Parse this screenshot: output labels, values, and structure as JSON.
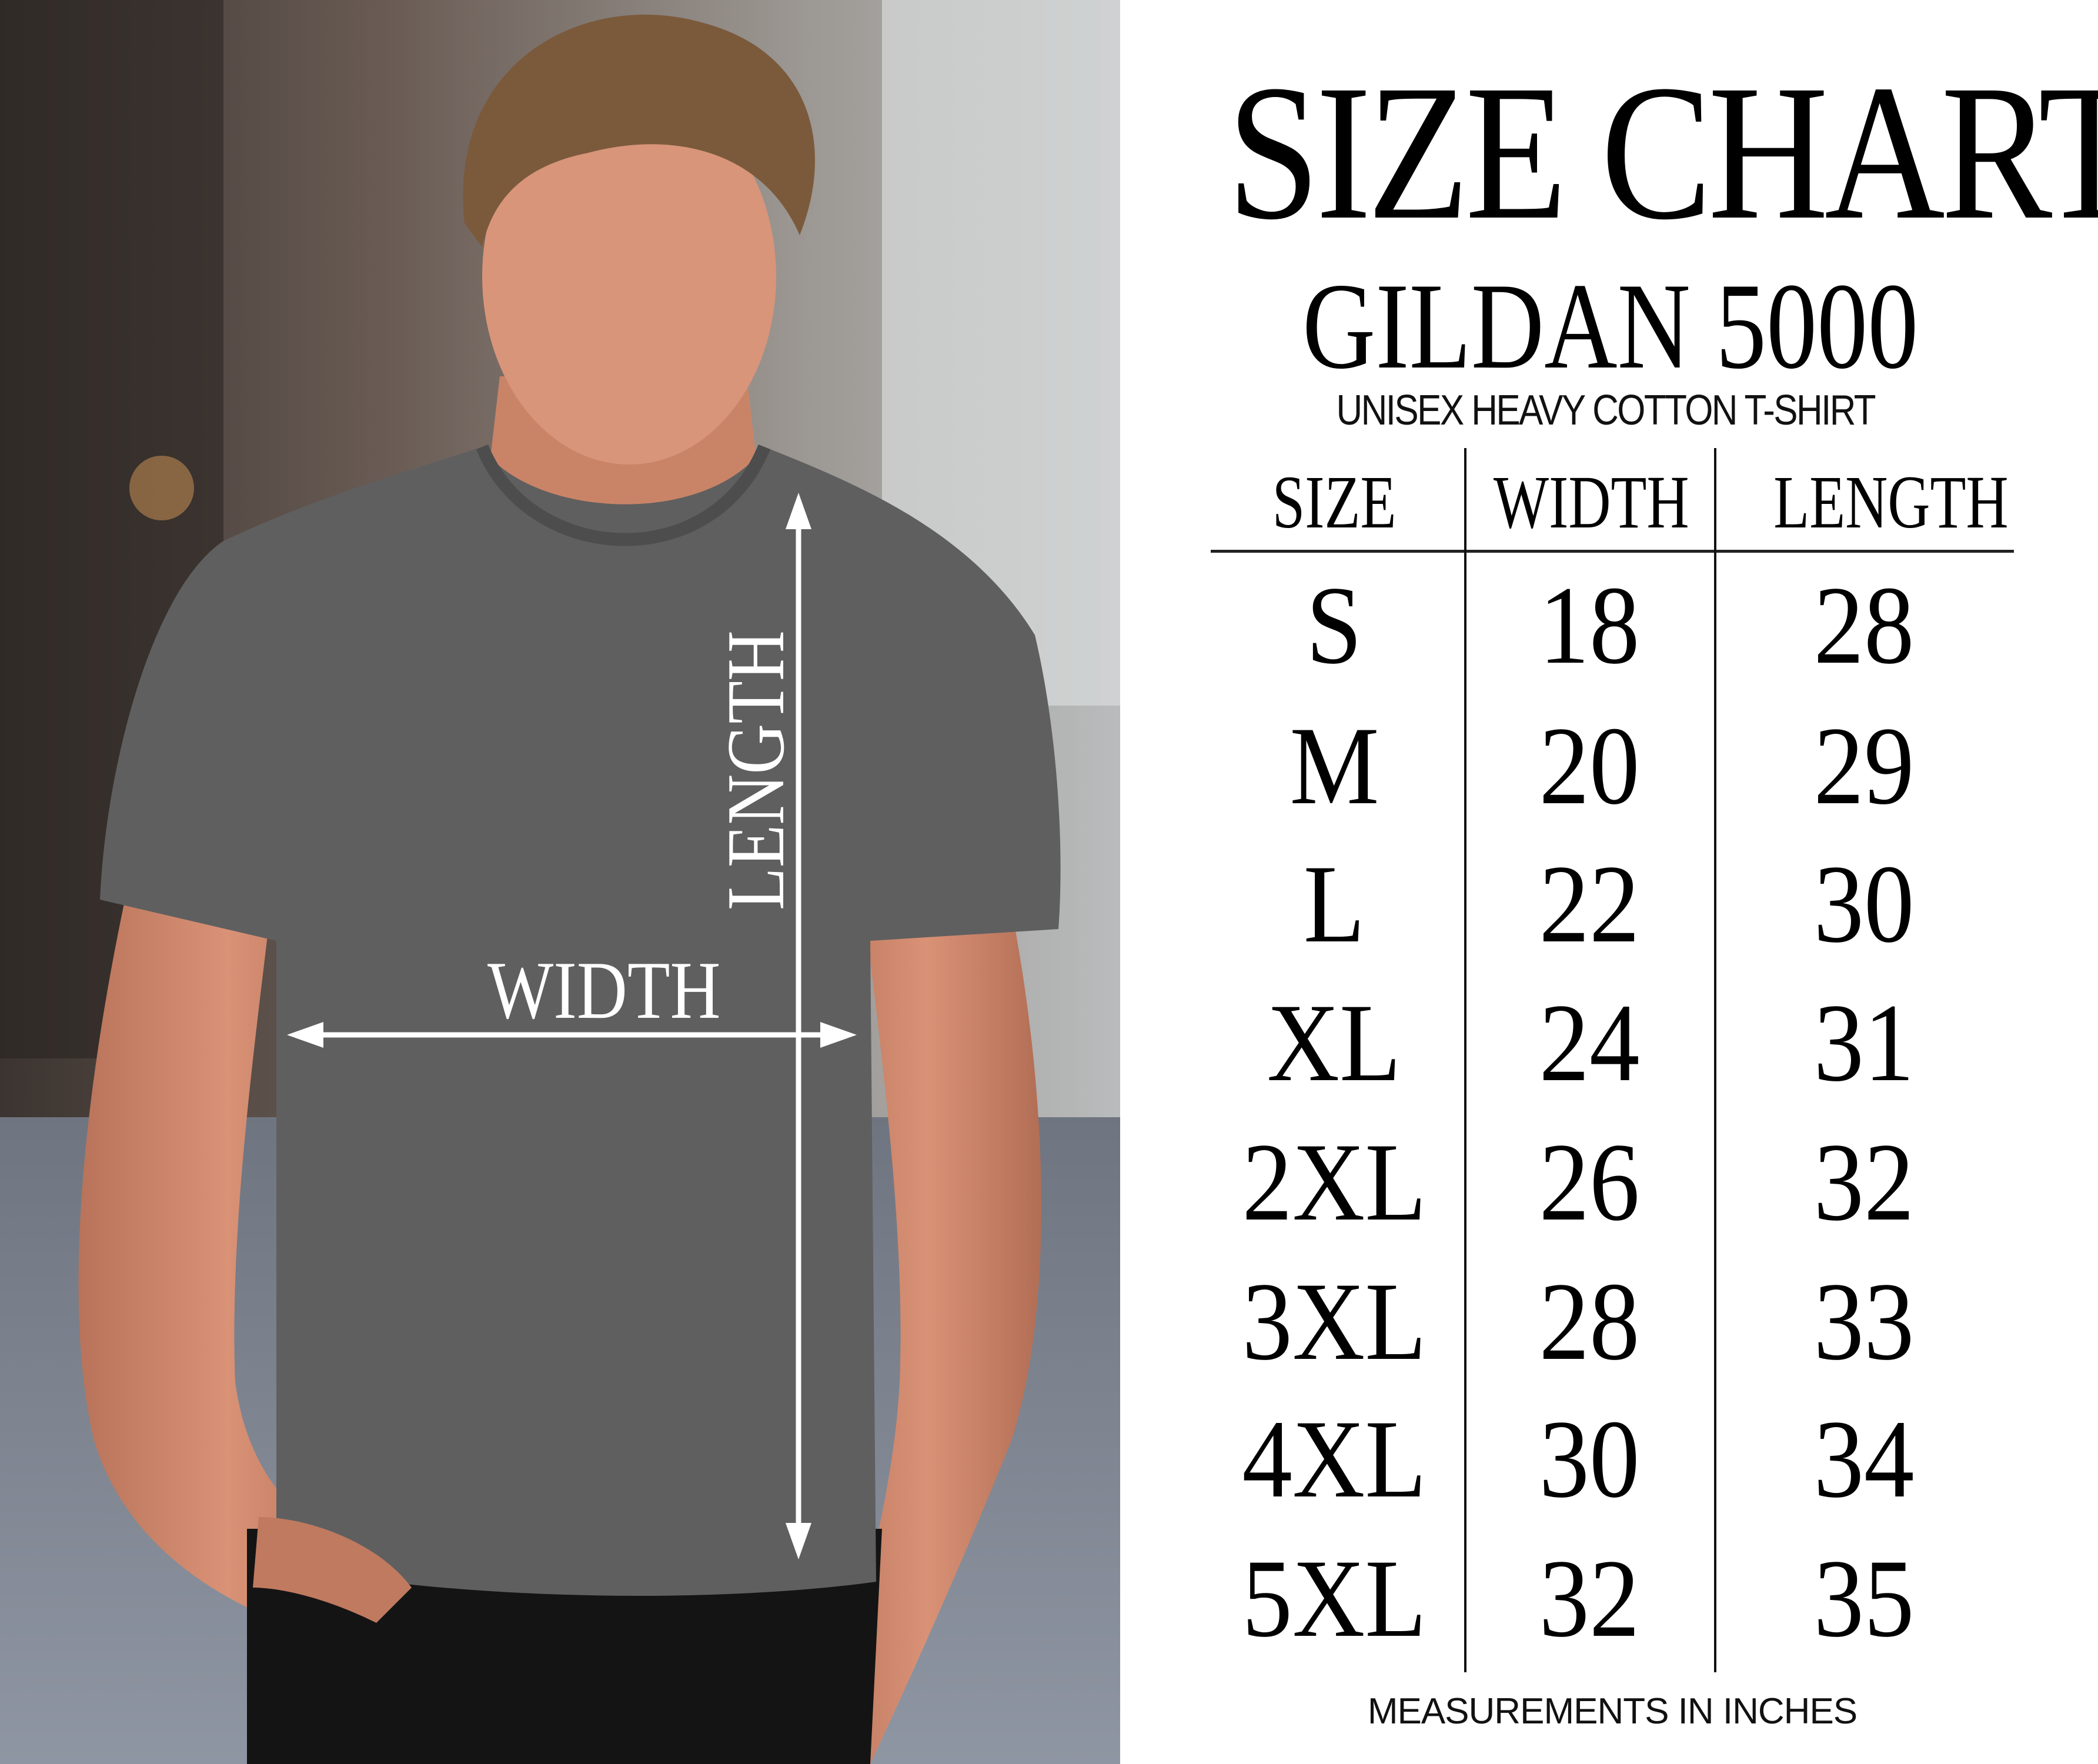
{
  "header": {
    "title": "SIZE CHART",
    "model": "GILDAN 5000",
    "subtitle": "UNISEX HEAVY COTTON T-SHIRT"
  },
  "photo": {
    "width_label": "WIDTH",
    "length_label": "LENGTH",
    "shirt_color": "#5f5f5f"
  },
  "table": {
    "columns": [
      "SIZE",
      "WIDTH",
      "LENGTH"
    ],
    "rows": [
      [
        "S",
        "18",
        "28"
      ],
      [
        "M",
        "20",
        "29"
      ],
      [
        "L",
        "22",
        "30"
      ],
      [
        "XL",
        "24",
        "31"
      ],
      [
        "2XL",
        "26",
        "32"
      ],
      [
        "3XL",
        "28",
        "33"
      ],
      [
        "4XL",
        "30",
        "34"
      ],
      [
        "5XL",
        "32",
        "35"
      ]
    ]
  },
  "footer": {
    "note": "MEASUREMENTS IN INCHES"
  }
}
